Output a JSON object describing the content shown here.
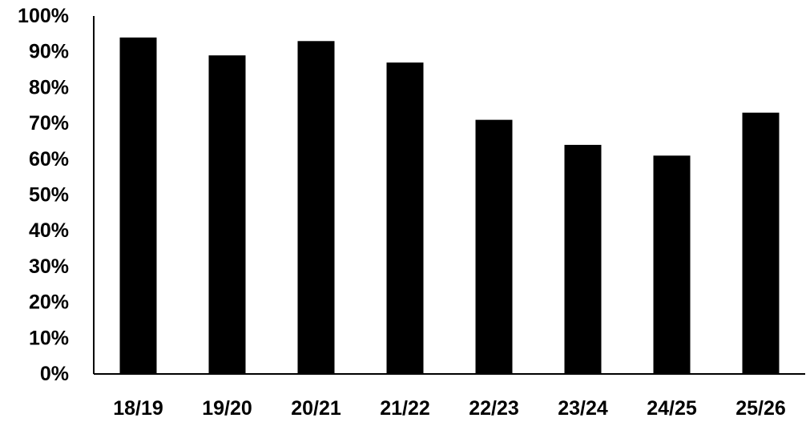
{
  "chart_data": {
    "type": "bar",
    "categories": [
      "18/19",
      "19/20",
      "20/21",
      "21/22",
      "22/23",
      "23/24",
      "24/25",
      "25/26"
    ],
    "values": [
      94,
      89,
      93,
      87,
      71,
      64,
      61,
      73
    ],
    "ylim": [
      0,
      100
    ],
    "yticks": [
      0,
      10,
      20,
      30,
      40,
      50,
      60,
      70,
      80,
      90,
      100
    ],
    "ytick_labels": [
      "0%",
      "10%",
      "20%",
      "30%",
      "40%",
      "50%",
      "60%",
      "70%",
      "80%",
      "90%",
      "100%"
    ],
    "grid": false,
    "legend": "none",
    "bar_color": "#000000",
    "axis_color": "#000000"
  }
}
